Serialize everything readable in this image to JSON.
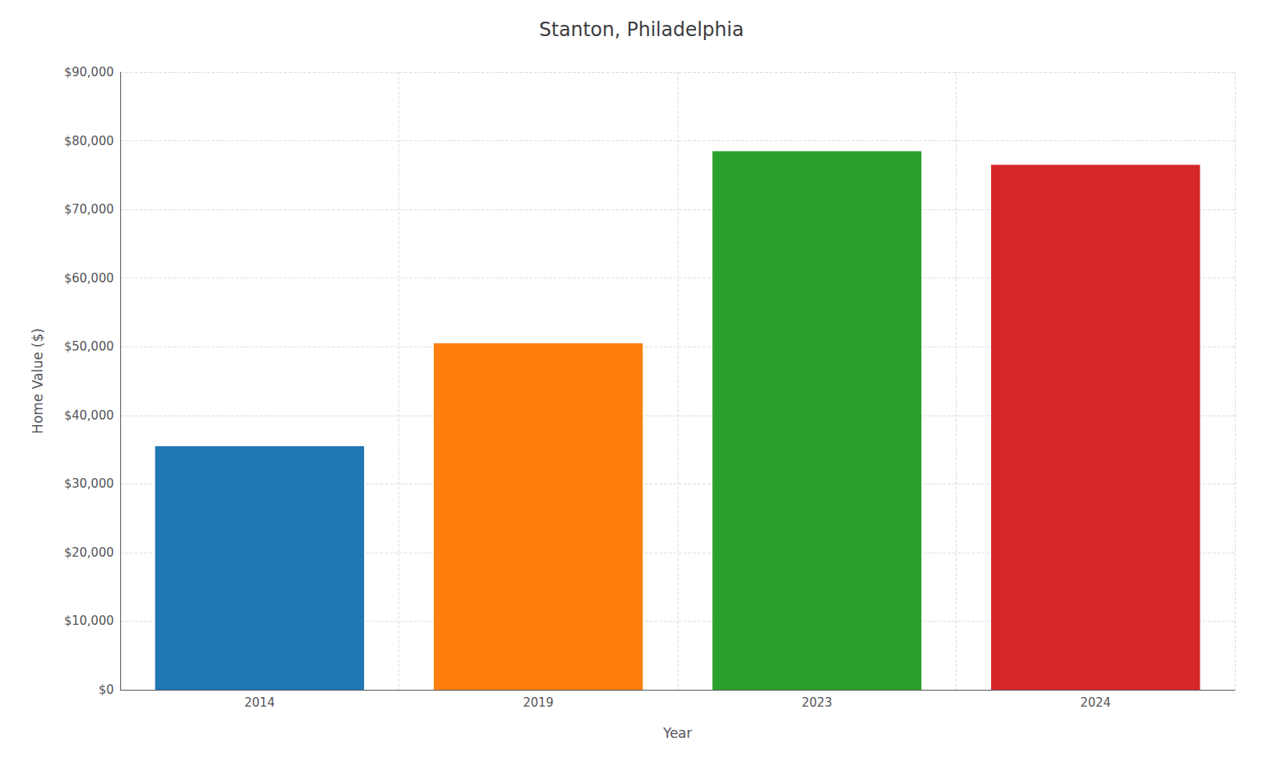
{
  "chart_data": {
    "type": "bar",
    "title": "Stanton, Philadelphia",
    "xlabel": "Year",
    "ylabel": "Home Value ($)",
    "categories": [
      "2014",
      "2019",
      "2023",
      "2024"
    ],
    "values": [
      35500,
      50500,
      78500,
      76500
    ],
    "colors": [
      "#1f77b4",
      "#ff7f0e",
      "#2ca02c",
      "#d62728"
    ],
    "ylim": [
      0,
      90000
    ],
    "yticks": [
      {
        "value": 0,
        "label": "$0"
      },
      {
        "value": 10000,
        "label": "$10,000"
      },
      {
        "value": 20000,
        "label": "$20,000"
      },
      {
        "value": 30000,
        "label": "$30,000"
      },
      {
        "value": 40000,
        "label": "$40,000"
      },
      {
        "value": 50000,
        "label": "$50,000"
      },
      {
        "value": 60000,
        "label": "$60,000"
      },
      {
        "value": 70000,
        "label": "$70,000"
      },
      {
        "value": 80000,
        "label": "$80,000"
      },
      {
        "value": 90000,
        "label": "$90,000"
      }
    ],
    "grid": true
  }
}
